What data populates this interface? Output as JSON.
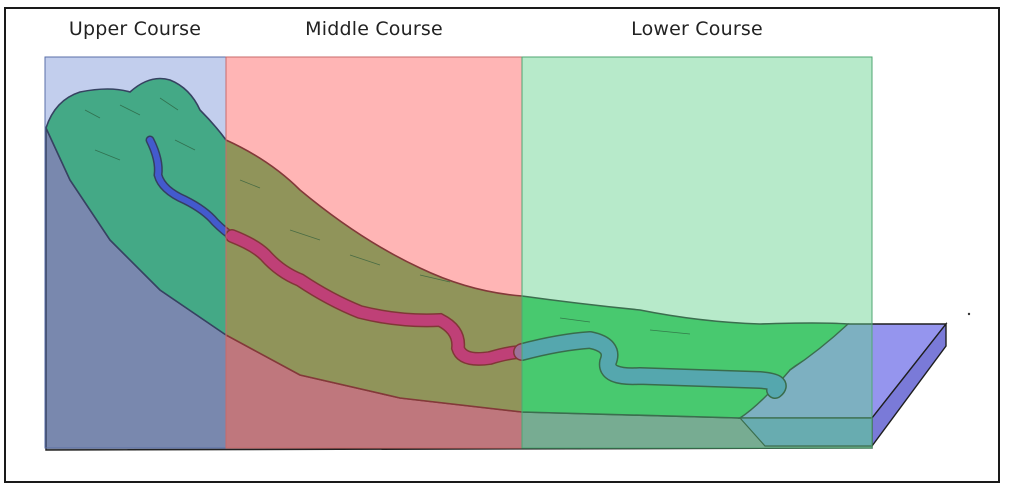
{
  "labels": {
    "upper": "Upper Course",
    "middle": "Middle Course",
    "lower": "Lower Course"
  },
  "colors": {
    "upper_zone": "#9fb4e0",
    "middle_zone": "#ff8f8f",
    "lower_zone": "#8fdcaa",
    "terrain": "#2fbf55",
    "river_upper": "#3344cc",
    "river_middle": "#882288",
    "river_lower": "#4d7fc0",
    "sea": "#9a9af0"
  }
}
